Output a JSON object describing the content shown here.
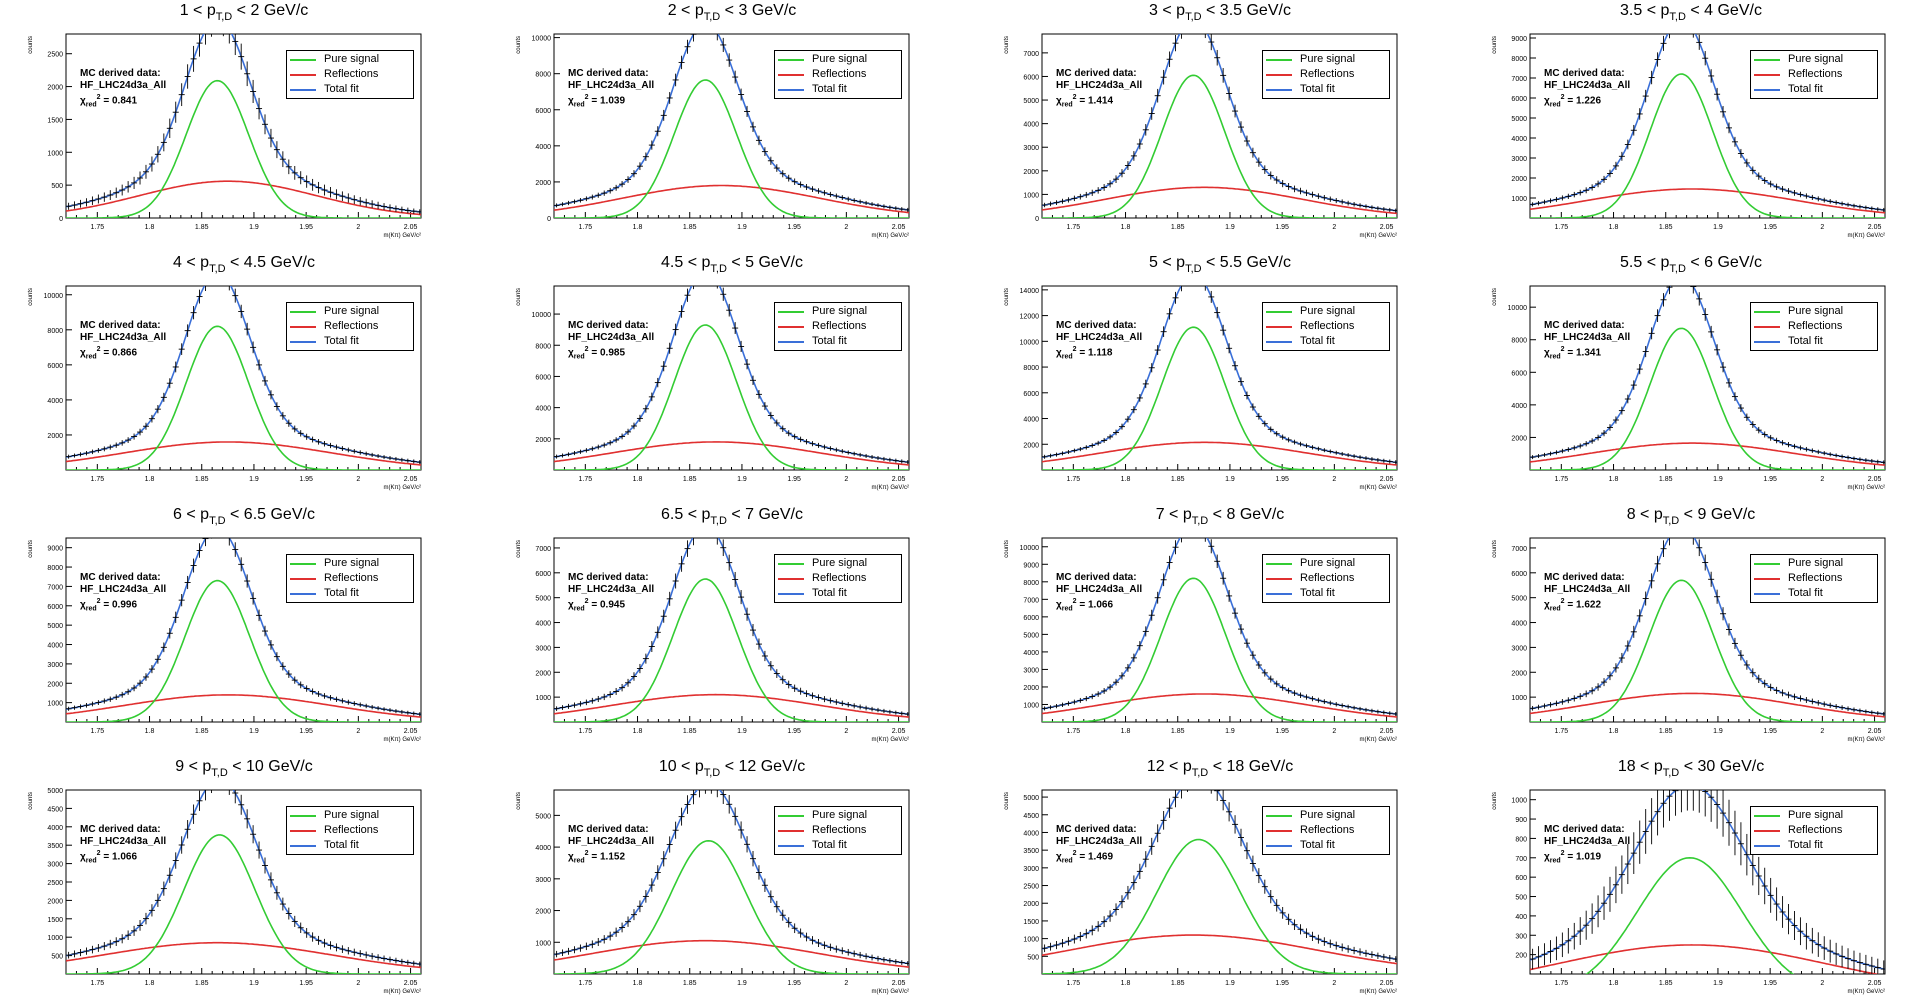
{
  "common": {
    "ylabel": "counts",
    "xlabel": "m(Kπ) GeV/c²",
    "info_line1": "MC derived data:",
    "info_line2": "HF_LHC24d3a_All",
    "chi_prefix": "χ",
    "chi_sub": "red",
    "chi_sup": "2",
    "legend": [
      {
        "label": "Pure signal",
        "color": "#33cc33"
      },
      {
        "label": "Reflections",
        "color": "#e03030"
      },
      {
        "label": "Total fit",
        "color": "#3a6fd8"
      }
    ],
    "colors": {
      "signal": "#33cc33",
      "reflection": "#e03030",
      "total": "#3a6fd8",
      "data": "#000000"
    }
  },
  "chart_data": [
    {
      "type": "line",
      "title": "1 < p_T,D < 2 GeV/c",
      "title_pre": "1 < p",
      "title_post": " < 2 GeV/c",
      "chi2": "0.841",
      "xlim": [
        1.72,
        2.06
      ],
      "ylim": [
        0,
        2800
      ],
      "yticks": [
        0,
        500,
        1000,
        1500,
        2000,
        2500
      ],
      "xticks": [
        1.75,
        1.8,
        1.85,
        1.9,
        1.95,
        2,
        2.05
      ],
      "peak_x": 1.865,
      "signal_amp": 2090,
      "signal_sigma": 0.03,
      "refl_amp": 560,
      "refl_center": 1.875,
      "refl_sigma": 0.085,
      "refl_floor": 0
    },
    {
      "type": "line",
      "title": "2 < p_T,D < 3 GeV/c",
      "title_pre": "2 < p",
      "title_post": " < 3 GeV/c",
      "chi2": "1.039",
      "xlim": [
        1.72,
        2.06
      ],
      "ylim": [
        0,
        10200
      ],
      "yticks": [
        0,
        2000,
        4000,
        6000,
        8000,
        10000
      ],
      "xticks": [
        1.75,
        1.8,
        1.85,
        1.9,
        1.95,
        2,
        2.05
      ],
      "peak_x": 1.865,
      "signal_amp": 7650,
      "signal_sigma": 0.03,
      "refl_amp": 1800,
      "refl_center": 1.88,
      "refl_sigma": 0.095,
      "refl_floor": 0
    },
    {
      "type": "line",
      "title": "3 < p_T,D < 3.5 GeV/c",
      "title_pre": "3 < p",
      "title_post": " < 3.5 GeV/c",
      "chi2": "1.414",
      "xlim": [
        1.72,
        2.06
      ],
      "ylim": [
        0,
        7800
      ],
      "yticks": [
        0,
        1000,
        2000,
        3000,
        4000,
        5000,
        6000,
        7000
      ],
      "xticks": [
        1.75,
        1.8,
        1.85,
        1.9,
        1.95,
        2,
        2.05
      ],
      "peak_x": 1.865,
      "signal_amp": 6050,
      "signal_sigma": 0.03,
      "refl_amp": 1300,
      "refl_center": 1.875,
      "refl_sigma": 0.095,
      "refl_floor": 0
    },
    {
      "type": "line",
      "title": "3.5 < p_T,D < 4 GeV/c",
      "title_pre": "3.5 < p",
      "title_post": " < 4 GeV/c",
      "chi2": "1.226",
      "xlim": [
        1.72,
        2.06
      ],
      "ylim": [
        0,
        9200
      ],
      "yticks": [
        1000,
        2000,
        3000,
        4000,
        5000,
        6000,
        7000,
        8000,
        9000
      ],
      "xticks": [
        1.75,
        1.8,
        1.85,
        1.9,
        1.95,
        2,
        2.05
      ],
      "peak_x": 1.865,
      "signal_amp": 7200,
      "signal_sigma": 0.03,
      "refl_amp": 1450,
      "refl_center": 1.875,
      "refl_sigma": 0.1,
      "refl_floor": 0
    },
    {
      "type": "line",
      "title": "4 < p_T,D < 4.5 GeV/c",
      "title_pre": "4 < p",
      "title_post": " < 4.5 GeV/c",
      "chi2": "0.866",
      "xlim": [
        1.72,
        2.06
      ],
      "ylim": [
        0,
        10500
      ],
      "yticks": [
        2000,
        4000,
        6000,
        8000,
        10000
      ],
      "xticks": [
        1.75,
        1.8,
        1.85,
        1.9,
        1.95,
        2,
        2.05
      ],
      "peak_x": 1.865,
      "signal_amp": 8200,
      "signal_sigma": 0.03,
      "refl_amp": 1600,
      "refl_center": 1.875,
      "refl_sigma": 0.1,
      "refl_floor": 0
    },
    {
      "type": "line",
      "title": "4.5 < p_T,D < 5 GeV/c",
      "title_pre": "4.5 < p",
      "title_post": " < 5 GeV/c",
      "chi2": "0.985",
      "xlim": [
        1.72,
        2.06
      ],
      "ylim": [
        0,
        11800
      ],
      "yticks": [
        2000,
        4000,
        6000,
        8000,
        10000
      ],
      "xticks": [
        1.75,
        1.8,
        1.85,
        1.9,
        1.95,
        2,
        2.05
      ],
      "peak_x": 1.865,
      "signal_amp": 9300,
      "signal_sigma": 0.03,
      "refl_amp": 1800,
      "refl_center": 1.875,
      "refl_sigma": 0.1,
      "refl_floor": 0
    },
    {
      "type": "line",
      "title": "5 < p_T,D < 5.5 GeV/c",
      "title_pre": "5 < p",
      "title_post": " < 5.5 GeV/c",
      "chi2": "1.118",
      "xlim": [
        1.72,
        2.06
      ],
      "ylim": [
        0,
        14300
      ],
      "yticks": [
        2000,
        4000,
        6000,
        8000,
        10000,
        12000,
        14000
      ],
      "xticks": [
        1.75,
        1.8,
        1.85,
        1.9,
        1.95,
        2,
        2.05
      ],
      "peak_x": 1.865,
      "signal_amp": 11100,
      "signal_sigma": 0.03,
      "refl_amp": 2150,
      "refl_center": 1.875,
      "refl_sigma": 0.1,
      "refl_floor": 0
    },
    {
      "type": "line",
      "title": "5.5 < p_T,D < 6 GeV/c",
      "title_pre": "5.5 < p",
      "title_post": " < 6 GeV/c",
      "chi2": "1.341",
      "xlim": [
        1.72,
        2.06
      ],
      "ylim": [
        0,
        11300
      ],
      "yticks": [
        2000,
        4000,
        6000,
        8000,
        10000
      ],
      "xticks": [
        1.75,
        1.8,
        1.85,
        1.9,
        1.95,
        2,
        2.05
      ],
      "peak_x": 1.865,
      "signal_amp": 8700,
      "signal_sigma": 0.03,
      "refl_amp": 1650,
      "refl_center": 1.875,
      "refl_sigma": 0.1,
      "refl_floor": 0
    },
    {
      "type": "line",
      "title": "6 < p_T,D < 6.5 GeV/c",
      "title_pre": "6 < p",
      "title_post": " < 6.5 GeV/c",
      "chi2": "0.996",
      "xlim": [
        1.72,
        2.06
      ],
      "ylim": [
        0,
        9500
      ],
      "yticks": [
        1000,
        2000,
        3000,
        4000,
        5000,
        6000,
        7000,
        8000,
        9000
      ],
      "xticks": [
        1.75,
        1.8,
        1.85,
        1.9,
        1.95,
        2,
        2.05
      ],
      "peak_x": 1.865,
      "signal_amp": 7300,
      "signal_sigma": 0.031,
      "refl_amp": 1400,
      "refl_center": 1.875,
      "refl_sigma": 0.1,
      "refl_floor": 0
    },
    {
      "type": "line",
      "title": "6.5 < p_T,D < 7 GeV/c",
      "title_pre": "6.5 < p",
      "title_post": " < 7 GeV/c",
      "chi2": "0.945",
      "xlim": [
        1.72,
        2.06
      ],
      "ylim": [
        0,
        7400
      ],
      "yticks": [
        1000,
        2000,
        3000,
        4000,
        5000,
        6000,
        7000
      ],
      "xticks": [
        1.75,
        1.8,
        1.85,
        1.9,
        1.95,
        2,
        2.05
      ],
      "peak_x": 1.865,
      "signal_amp": 5750,
      "signal_sigma": 0.031,
      "refl_amp": 1100,
      "refl_center": 1.875,
      "refl_sigma": 0.1,
      "refl_floor": 0
    },
    {
      "type": "line",
      "title": "7 < p_T,D < 8 GeV/c",
      "title_pre": "7 < p",
      "title_post": " < 8 GeV/c",
      "chi2": "1.066",
      "xlim": [
        1.72,
        2.06
      ],
      "ylim": [
        0,
        10500
      ],
      "yticks": [
        1000,
        2000,
        3000,
        4000,
        5000,
        6000,
        7000,
        8000,
        9000,
        10000
      ],
      "xticks": [
        1.75,
        1.8,
        1.85,
        1.9,
        1.95,
        2,
        2.05
      ],
      "peak_x": 1.865,
      "signal_amp": 8200,
      "signal_sigma": 0.031,
      "refl_amp": 1600,
      "refl_center": 1.875,
      "refl_sigma": 0.1,
      "refl_floor": 0
    },
    {
      "type": "line",
      "title": "8 < p_T,D < 9 GeV/c",
      "title_pre": "8 < p",
      "title_post": " < 9 GeV/c",
      "chi2": "1.622",
      "xlim": [
        1.72,
        2.06
      ],
      "ylim": [
        0,
        7400
      ],
      "yticks": [
        1000,
        2000,
        3000,
        4000,
        5000,
        6000,
        7000
      ],
      "xticks": [
        1.75,
        1.8,
        1.85,
        1.9,
        1.95,
        2,
        2.05
      ],
      "peak_x": 1.865,
      "signal_amp": 5700,
      "signal_sigma": 0.031,
      "refl_amp": 1150,
      "refl_center": 1.875,
      "refl_sigma": 0.1,
      "refl_floor": 0
    },
    {
      "type": "line",
      "title": "9 < p_T,D < 10 GeV/c",
      "title_pre": "9 < p",
      "title_post": " < 10 GeV/c",
      "chi2": "1.066",
      "xlim": [
        1.72,
        2.06
      ],
      "ylim": [
        0,
        5000
      ],
      "yticks": [
        500,
        1000,
        1500,
        2000,
        2500,
        3000,
        3500,
        4000,
        4500,
        5000
      ],
      "xticks": [
        1.75,
        1.8,
        1.85,
        1.9,
        1.95,
        2,
        2.05
      ],
      "peak_x": 1.867,
      "signal_amp": 3780,
      "signal_sigma": 0.034,
      "refl_amp": 850,
      "refl_center": 1.865,
      "refl_sigma": 0.11,
      "refl_floor": 0
    },
    {
      "type": "line",
      "title": "10 < p_T,D < 12 GeV/c",
      "title_pre": "10 < p",
      "title_post": " < 12 GeV/c",
      "chi2": "1.152",
      "xlim": [
        1.72,
        2.06
      ],
      "ylim": [
        0,
        5800
      ],
      "yticks": [
        1000,
        2000,
        3000,
        4000,
        5000
      ],
      "xticks": [
        1.75,
        1.8,
        1.85,
        1.9,
        1.95,
        2,
        2.05
      ],
      "peak_x": 1.868,
      "signal_amp": 4200,
      "signal_sigma": 0.036,
      "refl_amp": 1050,
      "refl_center": 1.865,
      "refl_sigma": 0.11,
      "refl_floor": 0
    },
    {
      "type": "line",
      "title": "12 < p_T,D < 18 GeV/c",
      "title_pre": "12 < p",
      "title_post": " < 18 GeV/c",
      "chi2": "1.469",
      "xlim": [
        1.72,
        2.06
      ],
      "ylim": [
        0,
        5200
      ],
      "yticks": [
        500,
        1000,
        1500,
        2000,
        2500,
        3000,
        3500,
        4000,
        4500,
        5000
      ],
      "xticks": [
        1.75,
        1.8,
        1.85,
        1.9,
        1.95,
        2,
        2.05
      ],
      "peak_x": 1.87,
      "signal_amp": 3800,
      "signal_sigma": 0.04,
      "refl_amp": 1100,
      "refl_center": 1.865,
      "refl_sigma": 0.12,
      "refl_floor": 0
    },
    {
      "type": "line",
      "title": "18 < p_T,D < 30 GeV/c",
      "title_pre": "18 < p",
      "title_post": " < 30 GeV/c",
      "chi2": "1.019",
      "xlim": [
        1.72,
        2.06
      ],
      "ylim": [
        100,
        1050
      ],
      "yticks": [
        200,
        300,
        400,
        500,
        600,
        700,
        800,
        900,
        1000
      ],
      "xticks": [
        1.75,
        1.8,
        1.85,
        1.9,
        1.95,
        2,
        2.05
      ],
      "peak_x": 1.873,
      "signal_amp": 700,
      "signal_sigma": 0.05,
      "refl_amp": 250,
      "refl_center": 1.875,
      "refl_sigma": 0.13,
      "refl_floor": 0
    }
  ]
}
